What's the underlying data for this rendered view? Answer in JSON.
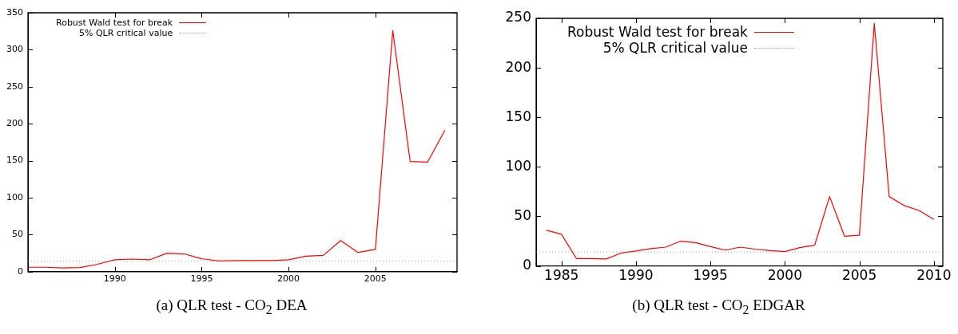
{
  "chart_data": [
    {
      "type": "line",
      "x": [
        1985,
        1986,
        1987,
        1988,
        1989,
        1990,
        1991,
        1992,
        1993,
        1994,
        1995,
        1996,
        1997,
        1998,
        1999,
        2000,
        2001,
        2002,
        2003,
        2004,
        2005,
        2006,
        2007,
        2008,
        2009
      ],
      "series": [
        {
          "name": "Robust Wald test for break",
          "color": "#ff0000",
          "values": [
            6,
            6,
            5,
            5.5,
            10,
            16,
            17,
            16,
            25,
            24,
            17.5,
            14.5,
            15,
            15,
            15,
            16,
            21,
            22,
            42,
            26,
            30,
            326,
            149,
            148,
            191
          ]
        }
      ],
      "xlim": [
        1985,
        2009.7
      ],
      "xticks": [
        1990,
        1995,
        2000,
        2005
      ],
      "ylim": [
        0,
        350
      ],
      "yticks": [
        0,
        50,
        100,
        150,
        200,
        250,
        300,
        350
      ],
      "ref_lines": [
        {
          "axis": "y",
          "value": 14,
          "label": "5% QLR critical value",
          "color": "#a0a0a0",
          "line_style": "dotted"
        }
      ],
      "legend": "top left",
      "annotations": [
        "(a)  QLR test - CO$_{2}$ DEA"
      ]
    },
    {
      "type": "line",
      "x": [
        1984,
        1985,
        1986,
        1987,
        1988,
        1989,
        1990,
        1991,
        1992,
        1993,
        1994,
        1995,
        1996,
        1997,
        1998,
        1999,
        2000,
        2001,
        2002,
        2003,
        2004,
        2005,
        2006,
        2007,
        2008,
        2009,
        2010
      ],
      "series": [
        {
          "name": "Robust Wald test for break",
          "color": "#ff0000",
          "values": [
            36,
            32,
            7.5,
            7.5,
            7,
            13,
            15,
            17.5,
            19,
            25,
            23.5,
            19.5,
            16,
            19,
            17,
            15.5,
            14.5,
            18.5,
            21,
            70,
            30,
            31,
            245,
            70,
            61,
            56,
            47
          ]
        }
      ],
      "xlim": [
        1983.3,
        2010.6
      ],
      "xticks": [
        1985,
        1990,
        1995,
        2000,
        2005,
        2010
      ],
      "ylim": [
        0,
        250
      ],
      "yticks": [
        0,
        50,
        100,
        150,
        200,
        250
      ],
      "ref_lines": [
        {
          "axis": "y",
          "value": 14,
          "label": "5% QLR critical value",
          "color": "#a0a0a0",
          "line_style": "dotted"
        }
      ],
      "legend": "top left",
      "annotations": [
        "(b)  QLR test - CO$_{2}$ EDGAR"
      ]
    }
  ]
}
